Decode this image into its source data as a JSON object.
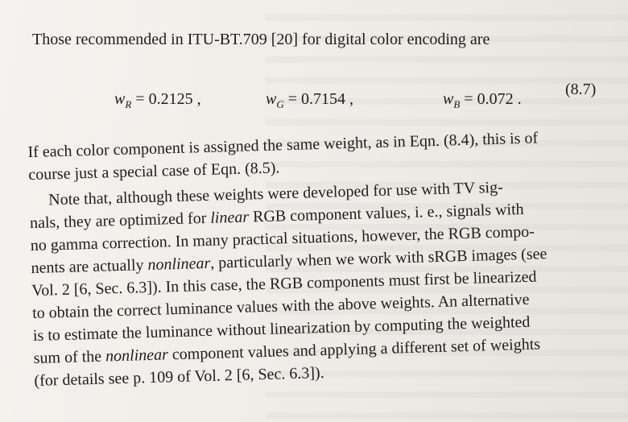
{
  "intro": "Those recommended in ITU-BT.709 [20] for digital color encoding are",
  "equation": {
    "wr_sym": "w",
    "wr_sub": "R",
    "wr_val": "= 0.2125 ,",
    "wg_sym": "w",
    "wg_sub": "G",
    "wg_val": "= 0.7154 ,",
    "wb_sym": "w",
    "wb_sub": "B",
    "wb_val": "= 0.072 .",
    "number": "(8.7)"
  },
  "para1": [
    "If each color component is assigned the same weight, as in Eqn. (8.4), this is of",
    "course just a special case of Eqn. (8.5)."
  ],
  "para2": {
    "l1": "Note that, although these weights were developed for use with TV sig-",
    "l2a": "nals, they are optimized for ",
    "l2i": "linear",
    "l2b": " RGB component values, i. e., signals with",
    "l3": "no gamma correction. In many practical situations, however, the RGB compo-",
    "l4a": "nents are actually ",
    "l4i": "nonlinear",
    "l4b": ", particularly when we work with sRGB images (see",
    "l5": "Vol. 2 [6, Sec. 6.3]). In this case, the RGB components must first be linearized",
    "l6": "to obtain the correct luminance values with the above weights. An alternative",
    "l7": "is to estimate the luminance without linearization by computing the weighted",
    "l8a": "sum of the ",
    "l8i": "nonlinear",
    "l8b": " component values and applying a different set of weights",
    "l9": "(for details see p. 109 of Vol. 2 [6, Sec. 6.3])."
  }
}
